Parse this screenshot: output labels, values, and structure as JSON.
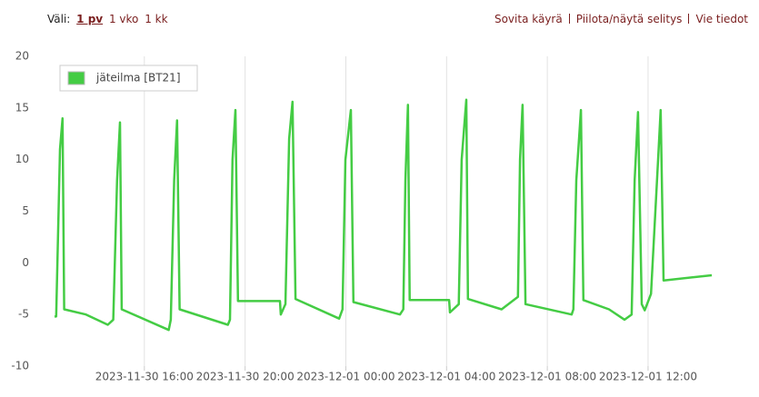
{
  "header": {
    "range_label": "Väli:",
    "range_options": [
      "1 pv",
      "1 vko",
      "1 kk"
    ],
    "actions": [
      "Sovita käyrä",
      "Piilota/näytä selitys",
      "Vie tiedot"
    ]
  },
  "chart_data": {
    "type": "line",
    "x": [
      "2023-11-30 12:26",
      "2023-11-30 12:30",
      "2023-11-30 12:39",
      "2023-11-30 12:45",
      "2023-11-30 12:49",
      "2023-11-30 13:41",
      "2023-11-30 14:33",
      "2023-11-30 14:46",
      "2023-11-30 14:55",
      "2023-11-30 15:02",
      "2023-11-30 15:06",
      "2023-11-30 16:58",
      "2023-11-30 17:03",
      "2023-11-30 17:11",
      "2023-11-30 17:18",
      "2023-11-30 17:24",
      "2023-11-30 19:19",
      "2023-11-30 19:24",
      "2023-11-30 19:30",
      "2023-11-30 19:37",
      "2023-11-30 19:43",
      "2023-11-30 21:23",
      "2023-11-30 21:25",
      "2023-11-30 21:36",
      "2023-11-30 21:45",
      "2023-11-30 21:53",
      "2023-11-30 22:00",
      "2023-11-30 23:44",
      "2023-11-30 23:52",
      "2023-11-30 23:59",
      "2023-12-01 00:12",
      "2023-12-01 00:18",
      "2023-12-01 02:09",
      "2023-12-01 02:17",
      "2023-12-01 02:22",
      "2023-12-01 02:28",
      "2023-12-01 02:32",
      "2023-12-01 04:06",
      "2023-12-01 04:08",
      "2023-12-01 04:29",
      "2023-12-01 04:36",
      "2023-12-01 04:47",
      "2023-12-01 04:51",
      "2023-12-01 06:11",
      "2023-12-01 06:50",
      "2023-12-01 06:55",
      "2023-12-01 07:01",
      "2023-12-01 07:08",
      "2023-12-01 08:58",
      "2023-12-01 09:02",
      "2023-12-01 09:09",
      "2023-12-01 09:20",
      "2023-12-01 09:26",
      "2023-12-01 10:27",
      "2023-12-01 11:04",
      "2023-12-01 11:21",
      "2023-12-01 11:28",
      "2023-12-01 11:36",
      "2023-12-01 11:45",
      "2023-12-01 11:52",
      "2023-12-01 12:07",
      "2023-12-01 12:24",
      "2023-12-01 12:30",
      "2023-12-01 12:37",
      "2023-12-01 14:32"
    ],
    "series": [
      {
        "name": "jäteilma [BT21]",
        "color": "#44cc44",
        "values": [
          -5.2,
          -5.2,
          11,
          14,
          -4.5,
          -5,
          -6,
          -5.5,
          8,
          13.6,
          -4.5,
          -6.5,
          -5.5,
          8,
          13.8,
          -4.5,
          -6,
          -5.5,
          10,
          14.8,
          -3.7,
          -3.7,
          -5,
          -4,
          12,
          15.6,
          -3.5,
          -5.4,
          -4.5,
          10,
          14.8,
          -3.8,
          -5,
          -4.5,
          8,
          15.3,
          -3.6,
          -3.6,
          -4.8,
          -4,
          10,
          15.8,
          -3.5,
          -4.5,
          -3.3,
          10,
          15.3,
          -4,
          -5,
          -4.5,
          8,
          14.8,
          -3.6,
          -4.5,
          -5.5,
          -5,
          8,
          14.6,
          -4,
          -4.6,
          -3,
          10,
          14.8,
          -1.7,
          -1.2
        ]
      }
    ],
    "xlim": [
      "2023-11-30 12:26",
      "2023-12-01 15:41"
    ],
    "xticks": [
      "2023-11-30 16:00",
      "2023-11-30 20:00",
      "2023-12-01 00:00",
      "2023-12-01 04:00",
      "2023-12-01 08:00",
      "2023-12-01 12:00"
    ],
    "ylim": [
      -10,
      20
    ],
    "yticks": [
      -10,
      -5,
      0,
      5,
      10,
      15,
      20
    ],
    "grid": true,
    "legend": "top-left"
  }
}
